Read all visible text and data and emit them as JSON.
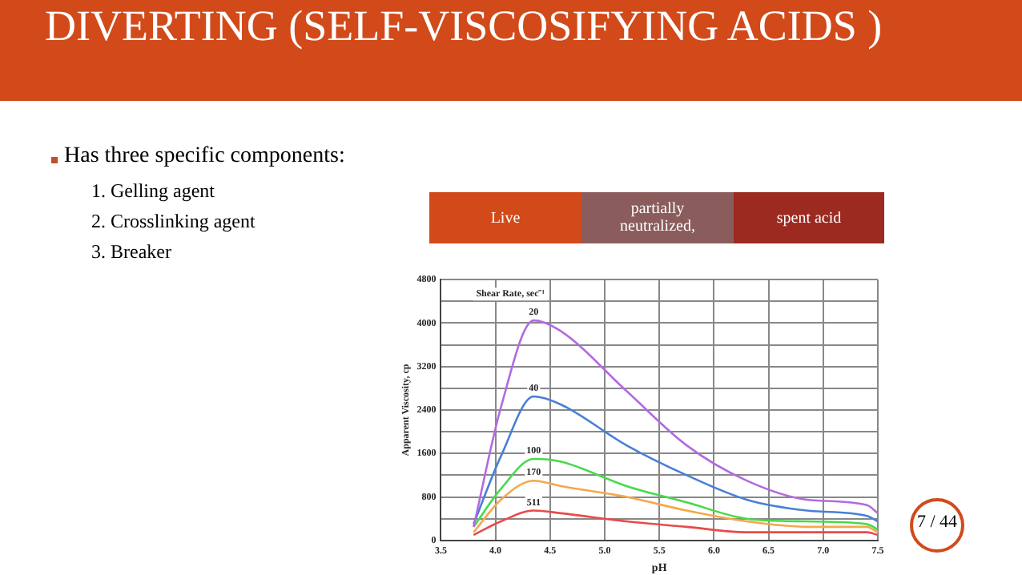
{
  "chart_data": {
    "type": "line",
    "title": "DIVERTING (SELF-VISCOSIFYING ACIDS )",
    "xlabel": "pH",
    "ylabel": "Apparent Viscosity, cp",
    "legend_title": "Shear Rate, sec⁻¹",
    "annotations": [
      "Has three specific components:",
      "1.  Gelling  agent",
      "2.  Crosslinking  agent",
      "3.  Breaker",
      "Live",
      "partially neutralized,",
      "spent acid",
      "7 / 44"
    ],
    "x": [
      3.8,
      4.05,
      4.35,
      4.6,
      5.2,
      5.75,
      6.3,
      6.85,
      7.4,
      7.5
    ],
    "series": [
      {
        "name": "20",
        "color": "#b36ae0",
        "values": [
          250,
          2450,
          4050,
          3850,
          2750,
          1750,
          1100,
          750,
          650,
          500
        ]
      },
      {
        "name": "40",
        "color": "#4a7fd6",
        "values": [
          300,
          1550,
          2650,
          2500,
          1750,
          1200,
          750,
          550,
          450,
          350
        ]
      },
      {
        "name": "100",
        "color": "#48d94a",
        "values": [
          250,
          950,
          1500,
          1450,
          1000,
          700,
          400,
          350,
          300,
          200
        ]
      },
      {
        "name": "170",
        "color": "#f5a84a",
        "values": [
          150,
          750,
          1100,
          1000,
          800,
          550,
          350,
          250,
          250,
          150
        ]
      },
      {
        "name": "511",
        "color": "#e84a4a",
        "values": [
          100,
          350,
          550,
          500,
          350,
          250,
          150,
          150,
          150,
          100
        ]
      }
    ],
    "xlim": [
      3.5,
      7.5
    ],
    "xticks": [
      3.5,
      {
        "value": 4,
        "label": "4.0"
      },
      4.5,
      {
        "value": 5,
        "label": "5.0"
      },
      5.5,
      {
        "value": 6,
        "label": "6.0"
      },
      6.5,
      {
        "value": 7,
        "label": "7.0"
      },
      7.5
    ],
    "ylim": [
      0,
      4800
    ],
    "yticks": [
      0,
      {
        "value": 400,
        "label": null
      },
      800,
      {
        "value": 1200,
        "label": null
      },
      1600,
      {
        "value": 2000,
        "label": null
      },
      2400,
      {
        "value": 2800,
        "label": null
      },
      3200,
      {
        "value": 3600,
        "label": null
      },
      4000,
      {
        "value": 4400,
        "label": null
      },
      4800
    ],
    "grid": true,
    "legend": false,
    "marker": "none",
    "line_style": "solid"
  }
}
